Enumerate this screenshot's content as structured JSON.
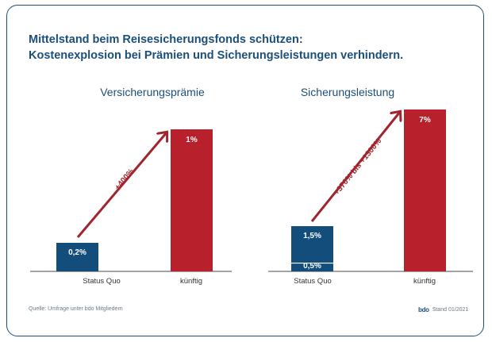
{
  "title": {
    "line1": "Mittelstand beim Reisesicherungsfonds schützen:",
    "line2": "Kostenexplosion bei Prämien und Sicherungsleistungen verhindern."
  },
  "footer": {
    "source": "Quelle: Umfrage unter bdo Mitgliedern",
    "logo": "bdo",
    "stand": "Stand 01/2021"
  },
  "colors": {
    "status_quo": "#124d7c",
    "kuenftig": "#b8202b",
    "arrow": "#a0252e",
    "axis": "#4a4a4a"
  },
  "chart_data": [
    {
      "type": "bar",
      "title": "Versicherungsprämie",
      "categories": [
        "Status Quo",
        "künftig"
      ],
      "values": [
        0.2,
        1
      ],
      "labels": [
        "0,2%",
        "1%"
      ],
      "arrow_label": "+400%"
    },
    {
      "type": "bar",
      "title": "Sicherungsleistung",
      "categories": [
        "Status Quo",
        "künftig"
      ],
      "stacked_status_quo": {
        "lower": 0.5,
        "upper": 1.5
      },
      "values": [
        1.5,
        7
      ],
      "labels": [
        "1,5%",
        "7%"
      ],
      "lower_label": "0,5%",
      "arrow_label": "+370% bis +1300%"
    }
  ]
}
